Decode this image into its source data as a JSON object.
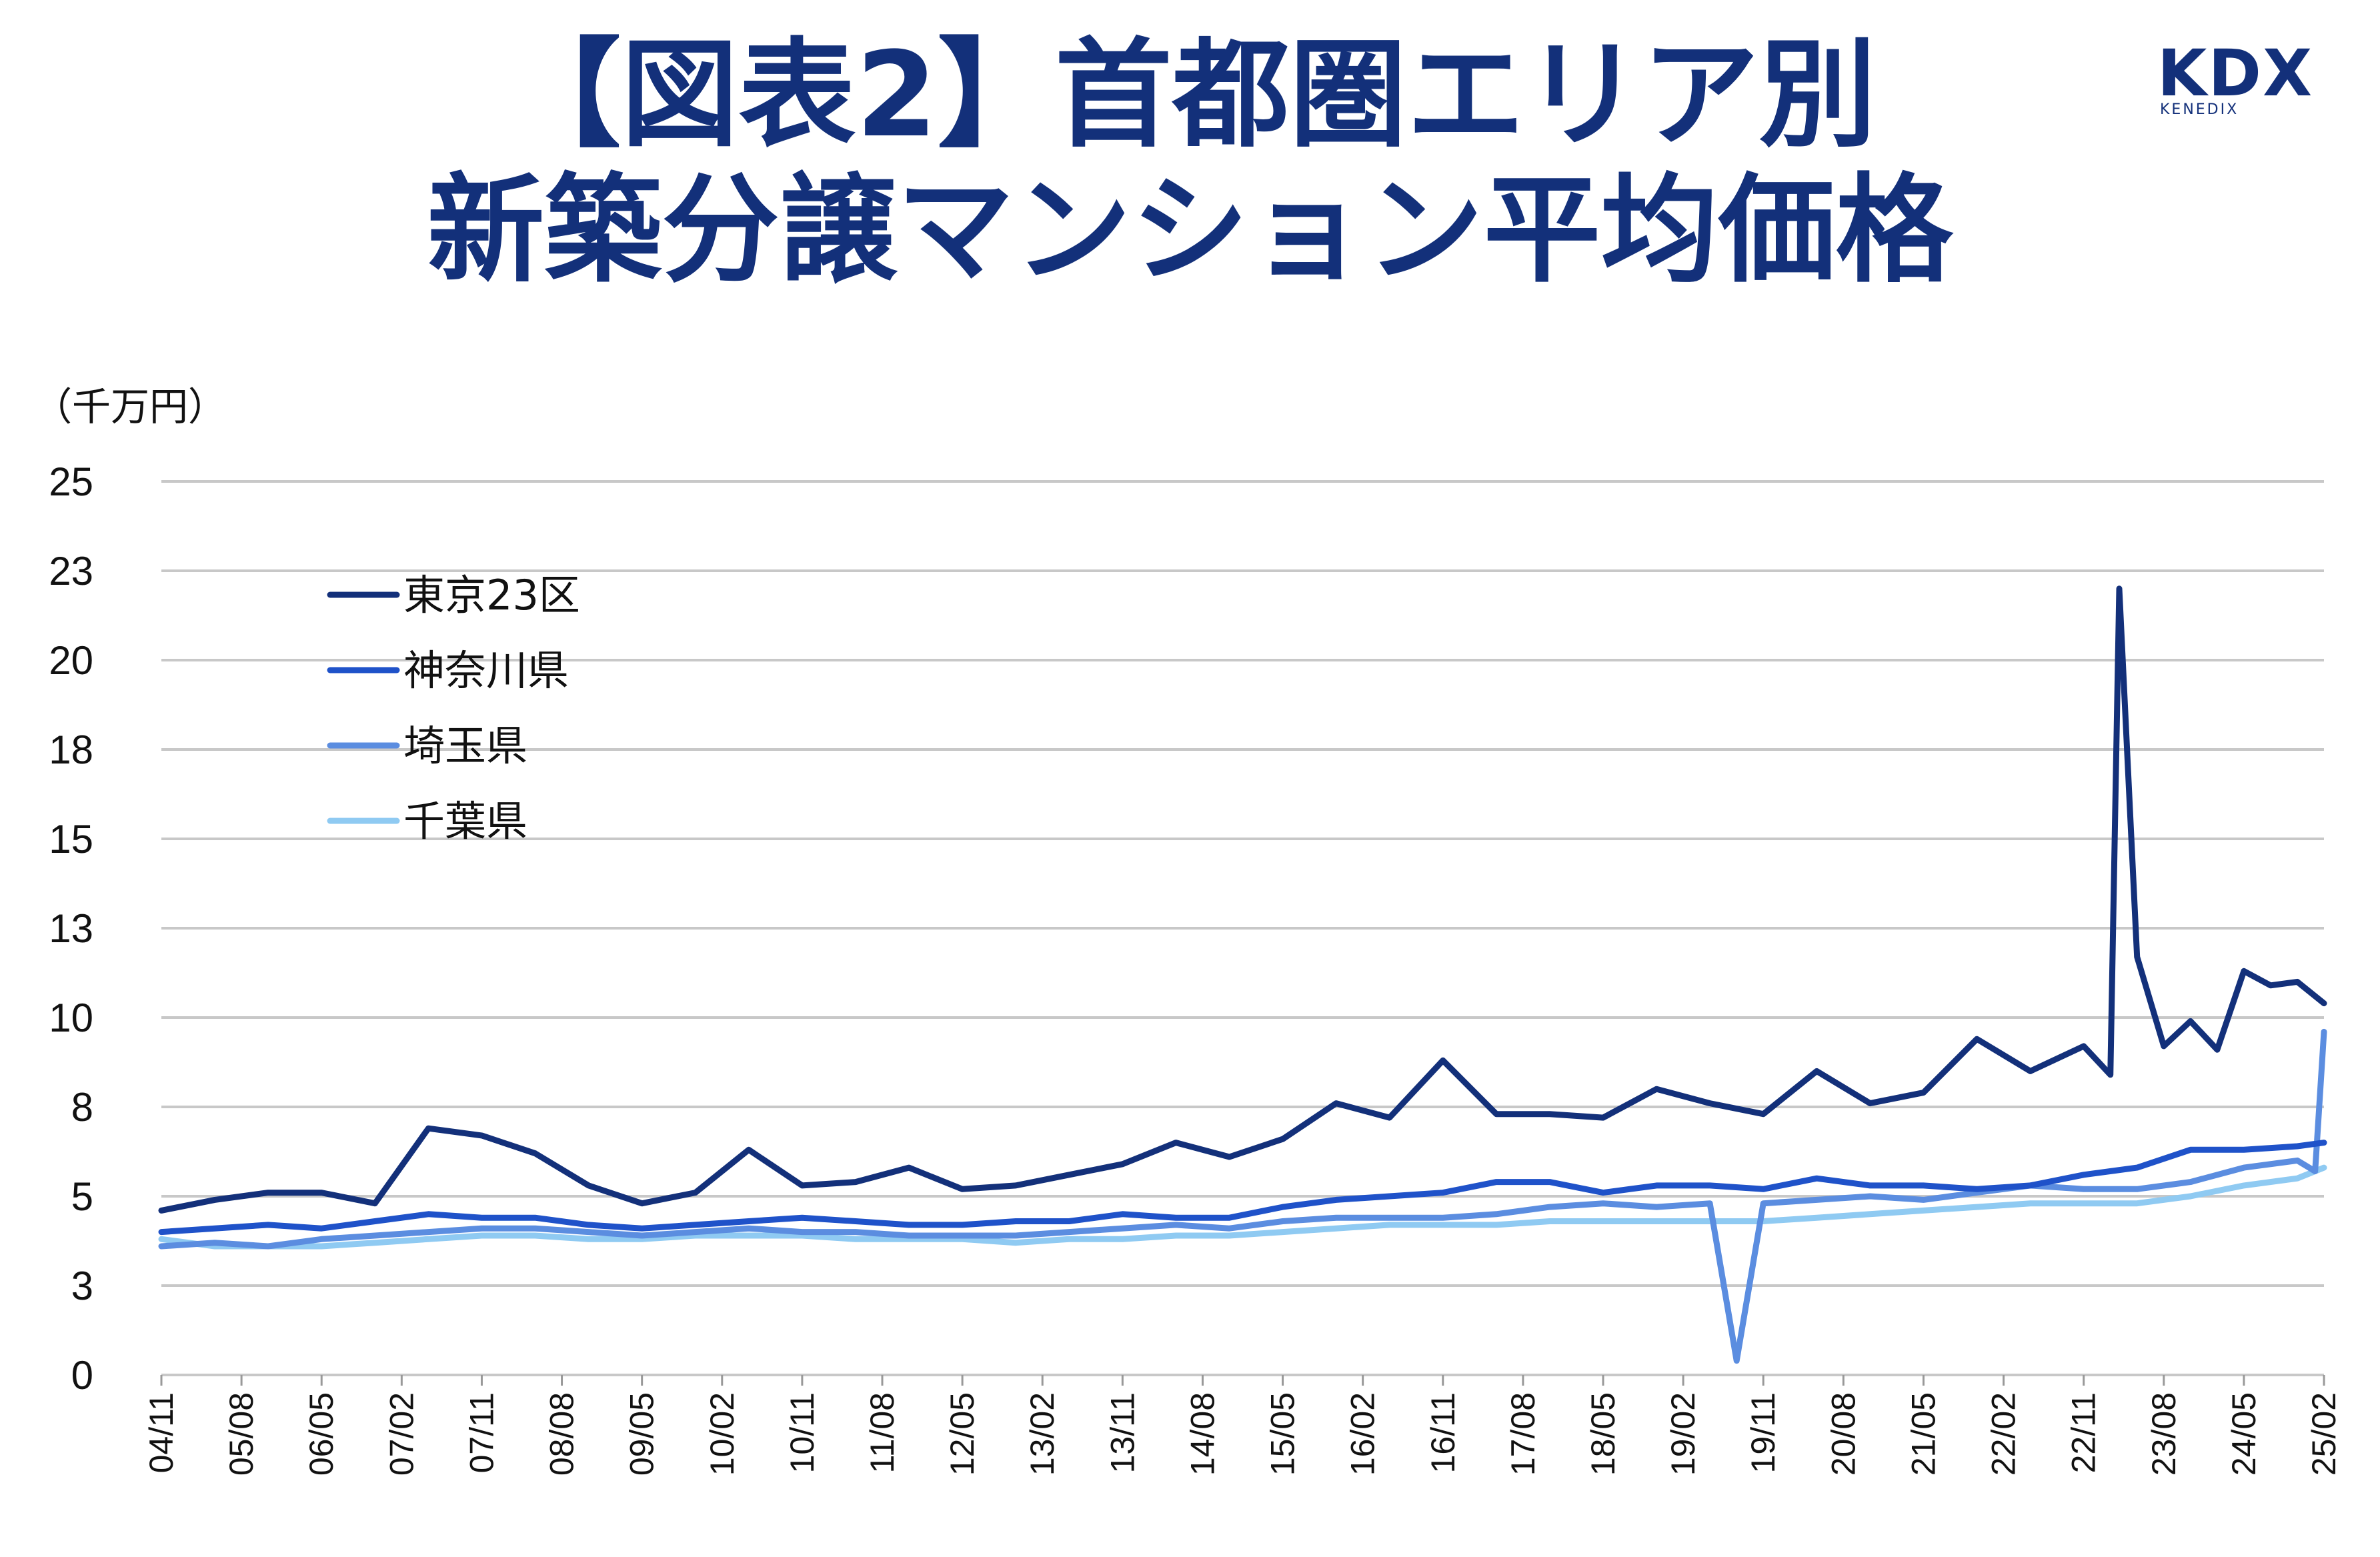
{
  "title_line1": "【図表2】首都圏エリア別",
  "title_line2": "新築分譲マンション平均価格",
  "logo": {
    "main": "KDX",
    "sub": "KENEDIX"
  },
  "colors": {
    "title": "#13307a",
    "tokyo": "#13307a",
    "kanagawa": "#1f52c9",
    "saitama": "#5b8de0",
    "chiba": "#8fcaf2",
    "grid": "#c8c8c8"
  },
  "chart_data": {
    "type": "line",
    "unit_label": "（千万円）",
    "ylim": [
      0,
      25
    ],
    "y_ticks": [
      {
        "value": 0,
        "label": "0"
      },
      {
        "value": 2.5,
        "label": "3"
      },
      {
        "value": 5,
        "label": "5"
      },
      {
        "value": 7.5,
        "label": "8"
      },
      {
        "value": 10,
        "label": "10"
      },
      {
        "value": 12.5,
        "label": "13"
      },
      {
        "value": 15,
        "label": "15"
      },
      {
        "value": 17.5,
        "label": "18"
      },
      {
        "value": 20,
        "label": "20"
      },
      {
        "value": 22.5,
        "label": "23"
      },
      {
        "value": 25,
        "label": "25"
      }
    ],
    "x_tick_labels": [
      "04/11",
      "05/08",
      "06/05",
      "07/02",
      "07/11",
      "08/08",
      "09/05",
      "10/02",
      "10/11",
      "11/08",
      "12/05",
      "13/02",
      "13/11",
      "14/08",
      "15/05",
      "16/02",
      "16/11",
      "17/08",
      "18/05",
      "19/02",
      "19/11",
      "20/08",
      "21/05",
      "22/02",
      "22/11",
      "23/08",
      "24/05",
      "25/02"
    ],
    "grid": true,
    "legend_placement": "upper-left",
    "series": [
      {
        "name": "東京23区",
        "x": [
          "04/11",
          "05/05",
          "05/11",
          "06/05",
          "06/11",
          "07/05",
          "07/11",
          "08/05",
          "08/11",
          "09/05",
          "09/11",
          "10/05",
          "10/11",
          "11/05",
          "11/11",
          "12/05",
          "12/11",
          "13/05",
          "13/11",
          "14/05",
          "14/11",
          "15/05",
          "15/11",
          "16/05",
          "16/11",
          "17/05",
          "17/11",
          "18/05",
          "18/11",
          "19/05",
          "19/11",
          "20/05",
          "20/11",
          "21/05",
          "21/11",
          "22/05",
          "22/11",
          "23/02",
          "23/03",
          "23/05",
          "23/08",
          "23/11",
          "24/02",
          "24/05",
          "24/08",
          "24/11",
          "25/02"
        ],
        "values": [
          4.6,
          4.9,
          5.1,
          5.1,
          4.8,
          6.9,
          6.7,
          6.2,
          5.3,
          4.8,
          5.1,
          6.3,
          5.3,
          5.4,
          5.8,
          5.2,
          5.3,
          5.6,
          5.9,
          6.5,
          6.1,
          6.6,
          7.6,
          7.2,
          8.8,
          7.3,
          7.3,
          7.2,
          8.0,
          7.6,
          7.3,
          8.5,
          7.6,
          7.9,
          9.4,
          8.5,
          9.2,
          8.4,
          22.0,
          11.7,
          9.2,
          9.9,
          9.1,
          11.3,
          10.9,
          11.0,
          10.4
        ]
      },
      {
        "name": "神奈川県",
        "x": [
          "04/11",
          "05/05",
          "05/11",
          "06/05",
          "06/11",
          "07/05",
          "07/11",
          "08/05",
          "08/11",
          "09/05",
          "09/11",
          "10/05",
          "10/11",
          "11/05",
          "11/11",
          "12/05",
          "12/11",
          "13/05",
          "13/11",
          "14/05",
          "14/11",
          "15/05",
          "15/11",
          "16/05",
          "16/11",
          "17/05",
          "17/11",
          "18/05",
          "18/11",
          "19/05",
          "19/11",
          "20/05",
          "20/11",
          "21/05",
          "21/11",
          "22/05",
          "22/11",
          "23/05",
          "23/11",
          "24/05",
          "24/11",
          "25/02"
        ],
        "values": [
          4.0,
          4.1,
          4.2,
          4.1,
          4.3,
          4.5,
          4.4,
          4.4,
          4.2,
          4.1,
          4.2,
          4.3,
          4.4,
          4.3,
          4.2,
          4.2,
          4.3,
          4.3,
          4.5,
          4.4,
          4.4,
          4.7,
          4.9,
          5.0,
          5.1,
          5.4,
          5.4,
          5.1,
          5.3,
          5.3,
          5.2,
          5.5,
          5.3,
          5.3,
          5.2,
          5.3,
          5.6,
          5.8,
          6.3,
          6.3,
          6.4,
          6.5
        ]
      },
      {
        "name": "埼玉県",
        "x": [
          "04/11",
          "05/05",
          "05/11",
          "06/05",
          "06/11",
          "07/05",
          "07/11",
          "08/05",
          "08/11",
          "09/05",
          "09/11",
          "10/05",
          "10/11",
          "11/05",
          "11/11",
          "12/05",
          "12/11",
          "13/05",
          "13/11",
          "14/05",
          "14/11",
          "15/05",
          "15/11",
          "16/05",
          "16/11",
          "17/05",
          "17/11",
          "18/05",
          "18/11",
          "19/05",
          "19/08",
          "19/11",
          "20/05",
          "20/11",
          "21/05",
          "21/11",
          "22/05",
          "22/11",
          "23/05",
          "23/11",
          "24/05",
          "24/11",
          "25/01",
          "25/02"
        ],
        "values": [
          3.6,
          3.7,
          3.6,
          3.8,
          3.9,
          4.0,
          4.1,
          4.1,
          4.0,
          3.9,
          4.0,
          4.1,
          4.0,
          4.0,
          3.9,
          3.9,
          3.9,
          4.0,
          4.1,
          4.2,
          4.1,
          4.3,
          4.4,
          4.4,
          4.4,
          4.5,
          4.7,
          4.8,
          4.7,
          4.8,
          0.4,
          4.8,
          4.9,
          5.0,
          4.9,
          5.1,
          5.3,
          5.2,
          5.2,
          5.4,
          5.8,
          6.0,
          5.7,
          9.6
        ]
      },
      {
        "name": "千葉県",
        "x": [
          "04/11",
          "05/05",
          "05/11",
          "06/05",
          "06/11",
          "07/05",
          "07/11",
          "08/05",
          "08/11",
          "09/05",
          "09/11",
          "10/05",
          "10/11",
          "11/05",
          "11/11",
          "12/05",
          "12/11",
          "13/05",
          "13/11",
          "14/05",
          "14/11",
          "15/05",
          "15/11",
          "16/05",
          "16/11",
          "17/05",
          "17/11",
          "18/05",
          "18/11",
          "19/05",
          "19/11",
          "20/05",
          "20/11",
          "21/05",
          "21/11",
          "22/05",
          "22/11",
          "23/05",
          "23/11",
          "24/05",
          "24/11",
          "25/02"
        ],
        "values": [
          3.8,
          3.6,
          3.6,
          3.6,
          3.7,
          3.8,
          3.9,
          3.9,
          3.8,
          3.8,
          3.9,
          3.9,
          3.9,
          3.8,
          3.8,
          3.8,
          3.7,
          3.8,
          3.8,
          3.9,
          3.9,
          4.0,
          4.1,
          4.2,
          4.2,
          4.2,
          4.3,
          4.3,
          4.3,
          4.3,
          4.3,
          4.4,
          4.5,
          4.6,
          4.7,
          4.8,
          4.8,
          4.8,
          5.0,
          5.3,
          5.5,
          5.8
        ]
      }
    ]
  }
}
